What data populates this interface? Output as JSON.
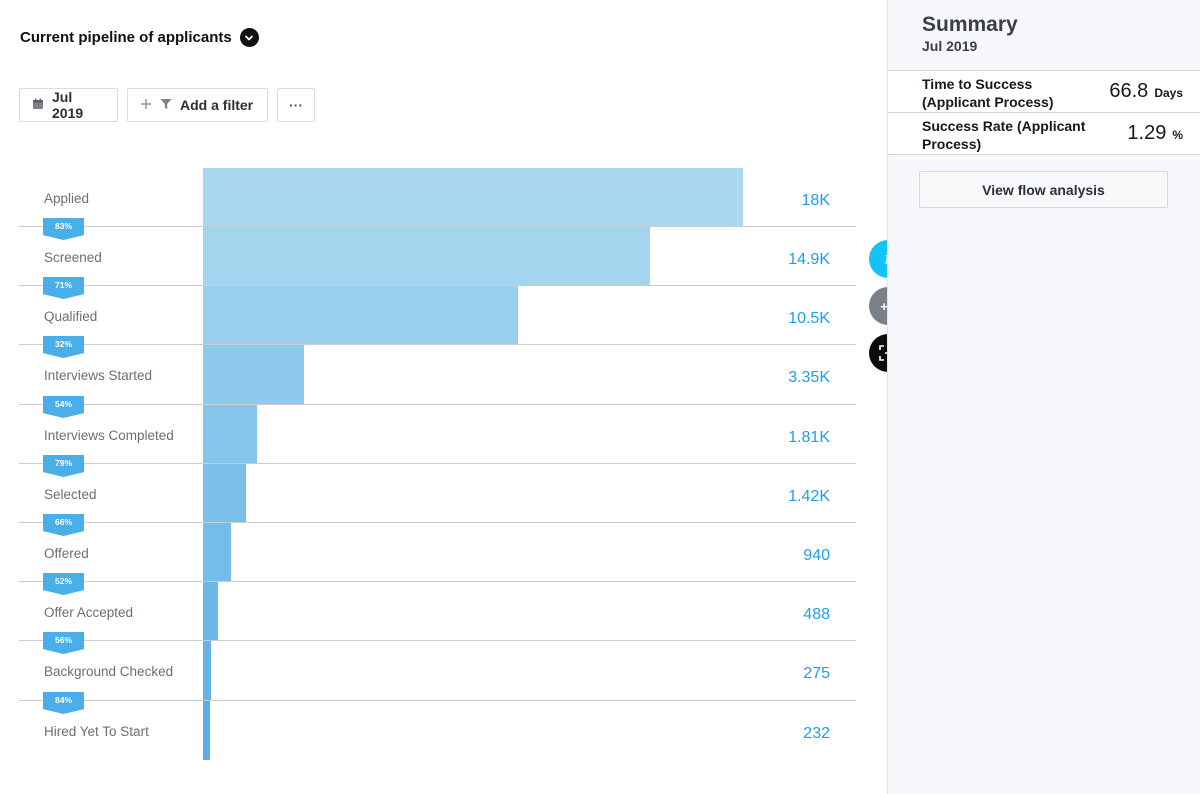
{
  "header": {
    "title": "Current pipeline of applicants"
  },
  "toolbar": {
    "date_label": "Jul 2019",
    "date_icon": "calendar-icon",
    "add_filter_label": "Add a filter",
    "add_filter_icons": [
      "plus-icon",
      "funnel-icon"
    ],
    "more_label": "···"
  },
  "funnel": {
    "colors": {
      "bar_top": "#a9d9f0",
      "bar_bottom": "#5ab3e6",
      "value_text": "#1ea0e6",
      "conversion_badge": "#4aaee8"
    },
    "stages": [
      {
        "label": "Applied",
        "value": "18K",
        "count": 18000,
        "conversion": "83%"
      },
      {
        "label": "Screened",
        "value": "14.9K",
        "count": 14900,
        "conversion": "71%"
      },
      {
        "label": "Qualified",
        "value": "10.5K",
        "count": 10500,
        "conversion": "32%"
      },
      {
        "label": "Interviews Started",
        "value": "3.35K",
        "count": 3350,
        "conversion": "54%"
      },
      {
        "label": "Interviews Completed",
        "value": "1.81K",
        "count": 1810,
        "conversion": "79%"
      },
      {
        "label": "Selected",
        "value": "1.42K",
        "count": 1420,
        "conversion": "66%"
      },
      {
        "label": "Offered",
        "value": "940",
        "count": 940,
        "conversion": "52%"
      },
      {
        "label": "Offer Accepted",
        "value": "488",
        "count": 488,
        "conversion": "56%"
      },
      {
        "label": "Background Checked",
        "value": "275",
        "count": 275,
        "conversion": "84%"
      },
      {
        "label": "Hired Yet To Start",
        "value": "232",
        "count": 232,
        "conversion": ""
      }
    ]
  },
  "side_actions": {
    "info_icon": "info-icon",
    "info_color": "#12c3f3",
    "add_icon": "add-list-icon",
    "add_label": "+≡",
    "add_color": "#7b7f86",
    "expand_icon": "expand-icon",
    "expand_color": "#0c0c0c"
  },
  "summary": {
    "title": "Summary",
    "period": "Jul 2019",
    "metrics": [
      {
        "label": "Time to Success (Applicant Process)",
        "value": "66.8",
        "unit": "Days"
      },
      {
        "label": "Success Rate (Applicant Process)",
        "value": "1.29",
        "unit": "%"
      }
    ],
    "flow_button_label": "View flow analysis"
  }
}
